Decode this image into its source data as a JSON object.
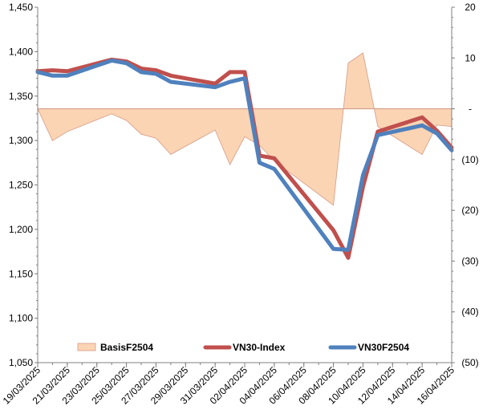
{
  "chart_data": {
    "type": "line",
    "x": [
      "19/03/2025",
      "20/03/2025",
      "21/03/2025",
      "24/03/2025",
      "25/03/2025",
      "26/03/2025",
      "27/03/2025",
      "28/03/2025",
      "31/03/2025",
      "01/04/2025",
      "02/04/2025",
      "03/04/2025",
      "04/04/2025",
      "08/04/2025",
      "09/04/2025",
      "10/04/2025",
      "11/04/2025",
      "14/04/2025",
      "15/04/2025",
      "16/04/2025"
    ],
    "xlabel": "",
    "ylabel": "",
    "ylim": [
      1050,
      1450
    ],
    "y2lim": [
      -50,
      20
    ],
    "xticks": [
      "19/03/2025",
      "21/03/2025",
      "23/03/2025",
      "25/03/2025",
      "27/03/2025",
      "29/03/2025",
      "31/03/2025",
      "02/04/2025",
      "04/04/2025",
      "06/04/2025",
      "08/04/2025",
      "10/04/2025",
      "12/04/2025",
      "14/04/2025",
      "16/04/2025"
    ],
    "yticks": [
      "1,050",
      "1,100",
      "1,150",
      "1,200",
      "1,250",
      "1,300",
      "1,350",
      "1,400",
      "1,450"
    ],
    "y2ticks": [
      "(50)",
      "(40)",
      "(30)",
      "(20)",
      "(10)",
      "-",
      "10",
      "20"
    ],
    "series": [
      {
        "name": "BasisF2504",
        "kind": "area",
        "axis": "right",
        "color": "#fbd4b4",
        "points": [
          [
            "2025-03-19",
            0.0
          ],
          [
            "2025-03-20",
            -6.3
          ],
          [
            "2025-03-21",
            -4.5
          ],
          [
            "2025-03-24",
            -1.0
          ],
          [
            "2025-03-25",
            -2.3
          ],
          [
            "2025-03-26",
            -5.0
          ],
          [
            "2025-03-27",
            -5.8
          ],
          [
            "2025-03-28",
            -9.0
          ],
          [
            "2025-03-31",
            -4.2
          ],
          [
            "2025-04-01",
            -11.0
          ],
          [
            "2025-04-02",
            -5.5
          ],
          [
            "2025-04-03",
            -7.2
          ],
          [
            "2025-04-04",
            -10.3
          ],
          [
            "2025-04-08",
            -19.0
          ],
          [
            "2025-04-09",
            9.0
          ],
          [
            "2025-04-10",
            11.0
          ],
          [
            "2025-04-11",
            -3.5
          ],
          [
            "2025-04-14",
            -9.0
          ],
          [
            "2025-04-15",
            -3.2
          ],
          [
            "2025-04-16",
            -3.5
          ]
        ]
      },
      {
        "name": "VN30-Index",
        "kind": "line",
        "axis": "left",
        "color": "#c0504d",
        "points": [
          [
            "2025-03-19",
            1378
          ],
          [
            "2025-03-20",
            1379
          ],
          [
            "2025-03-21",
            1378
          ],
          [
            "2025-03-24",
            1391
          ],
          [
            "2025-03-25",
            1389
          ],
          [
            "2025-03-26",
            1381
          ],
          [
            "2025-03-27",
            1379
          ],
          [
            "2025-03-28",
            1373
          ],
          [
            "2025-03-31",
            1364
          ],
          [
            "2025-04-01",
            1377
          ],
          [
            "2025-04-02",
            1377
          ],
          [
            "2025-04-03",
            1283
          ],
          [
            "2025-04-04",
            1280
          ],
          [
            "2025-04-08",
            1199
          ],
          [
            "2025-04-09",
            1168
          ],
          [
            "2025-04-10",
            1248
          ],
          [
            "2025-04-11",
            1310
          ],
          [
            "2025-04-14",
            1326
          ],
          [
            "2025-04-15",
            1311
          ],
          [
            "2025-04-16",
            1292
          ]
        ]
      },
      {
        "name": "VN30F2504",
        "kind": "line",
        "axis": "left",
        "color": "#4f81bd",
        "points": [
          [
            "2025-03-19",
            1377
          ],
          [
            "2025-03-20",
            1373
          ],
          [
            "2025-03-21",
            1373
          ],
          [
            "2025-03-24",
            1390
          ],
          [
            "2025-03-25",
            1387
          ],
          [
            "2025-03-26",
            1377
          ],
          [
            "2025-03-27",
            1375
          ],
          [
            "2025-03-28",
            1366
          ],
          [
            "2025-03-31",
            1360
          ],
          [
            "2025-04-01",
            1366
          ],
          [
            "2025-04-02",
            1370
          ],
          [
            "2025-04-03",
            1275
          ],
          [
            "2025-04-04",
            1268
          ],
          [
            "2025-04-08",
            1178
          ],
          [
            "2025-04-09",
            1177
          ],
          [
            "2025-04-10",
            1261
          ],
          [
            "2025-04-11",
            1306
          ],
          [
            "2025-04-14",
            1317
          ],
          [
            "2025-04-15",
            1308
          ],
          [
            "2025-04-16",
            1289
          ]
        ]
      }
    ],
    "legend": [
      "BasisF2504",
      "VN30-Index",
      "VN30F2504"
    ],
    "legend_position": "bottom-inside",
    "grid": false
  }
}
